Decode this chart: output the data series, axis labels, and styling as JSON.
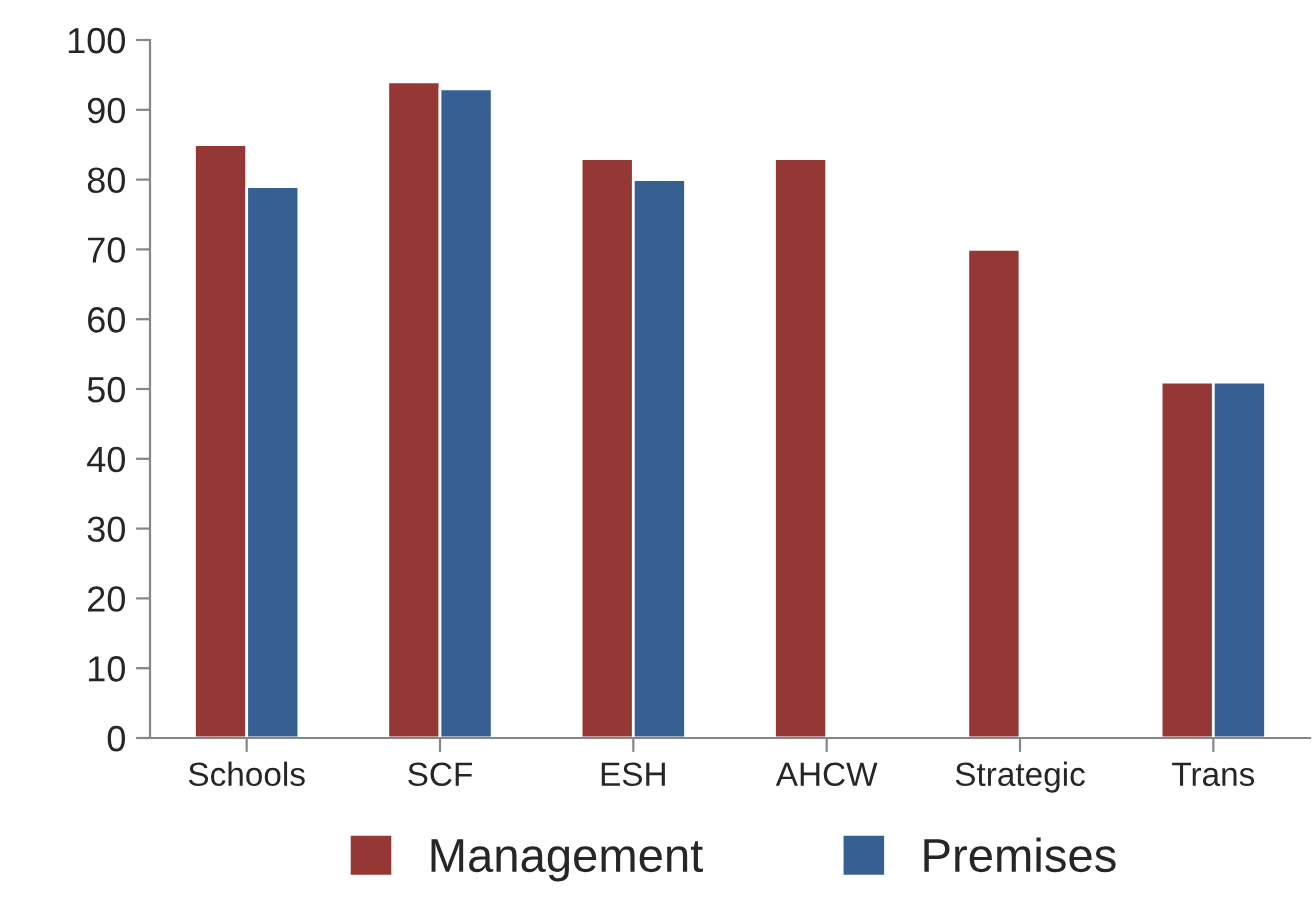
{
  "chart_data": {
    "type": "bar",
    "categories": [
      "Schools",
      "SCF",
      "ESH",
      "AHCW",
      "Strategic",
      "Trans"
    ],
    "series": [
      {
        "name": "Management",
        "color": "#953735",
        "values": [
          85,
          94,
          83,
          83,
          70,
          51
        ]
      },
      {
        "name": "Premises",
        "color": "#376092",
        "values": [
          79,
          93,
          80,
          null,
          null,
          51
        ]
      }
    ],
    "ylim": [
      0,
      100
    ],
    "yticks": [
      0,
      10,
      20,
      30,
      40,
      50,
      60,
      70,
      80,
      90,
      100
    ],
    "grid": false,
    "legend": "bottom"
  }
}
